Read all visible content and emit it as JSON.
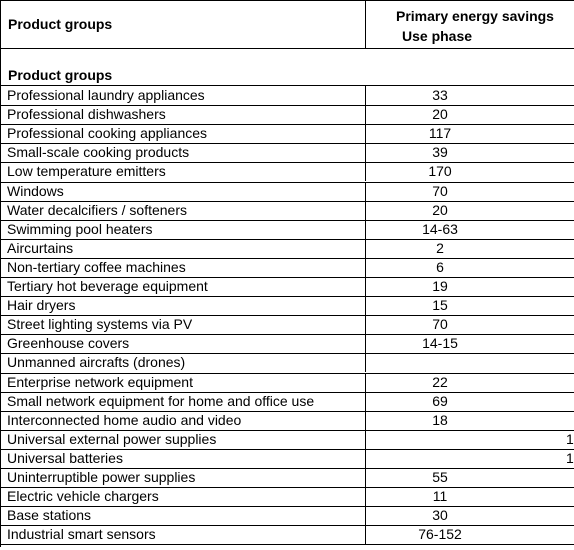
{
  "header": {
    "title": "Product groups",
    "column_title": [
      "Primary energy savings",
      "Use phase"
    ]
  },
  "section_title": "Product groups",
  "table": {
    "rows": [
      [
        "Professional laundry appliances",
        33
      ],
      [
        "Professional dishwashers",
        20
      ],
      [
        "Professional cooking appliances",
        117
      ],
      [
        "Small-scale cooking products",
        39
      ],
      [
        "Low temperature emitters",
        170
      ],
      [
        "Windows",
        70
      ],
      [
        "Water decalcifiers / softeners",
        20
      ],
      [
        "Swimming pool heaters",
        "14-63"
      ],
      [
        "Aircurtains",
        2
      ],
      [
        "Non-tertiary coffee machines",
        6
      ],
      [
        "Tertiary hot beverage equipment",
        19
      ],
      [
        "Hair dryers",
        15
      ],
      [
        "Street lighting systems via PV",
        70
      ],
      [
        "Greenhouse covers",
        "14-15"
      ],
      [
        "Unmanned aircrafts (drones)"
      ],
      [
        "Enterprise network equipment",
        22
      ],
      [
        "Small network equipment for home and office use",
        69
      ],
      [
        "Interconnected home audio and video",
        18
      ],
      [
        "Universal external power supplies",
        null,
        1
      ],
      [
        "Universal batteries",
        null,
        1
      ],
      [
        "Uninterruptible power supplies",
        55
      ],
      [
        "Electric vehicle chargers",
        11
      ],
      [
        "Base stations",
        30
      ],
      [
        "Industrial smart sensors",
        "76-152"
      ]
    ]
  }
}
